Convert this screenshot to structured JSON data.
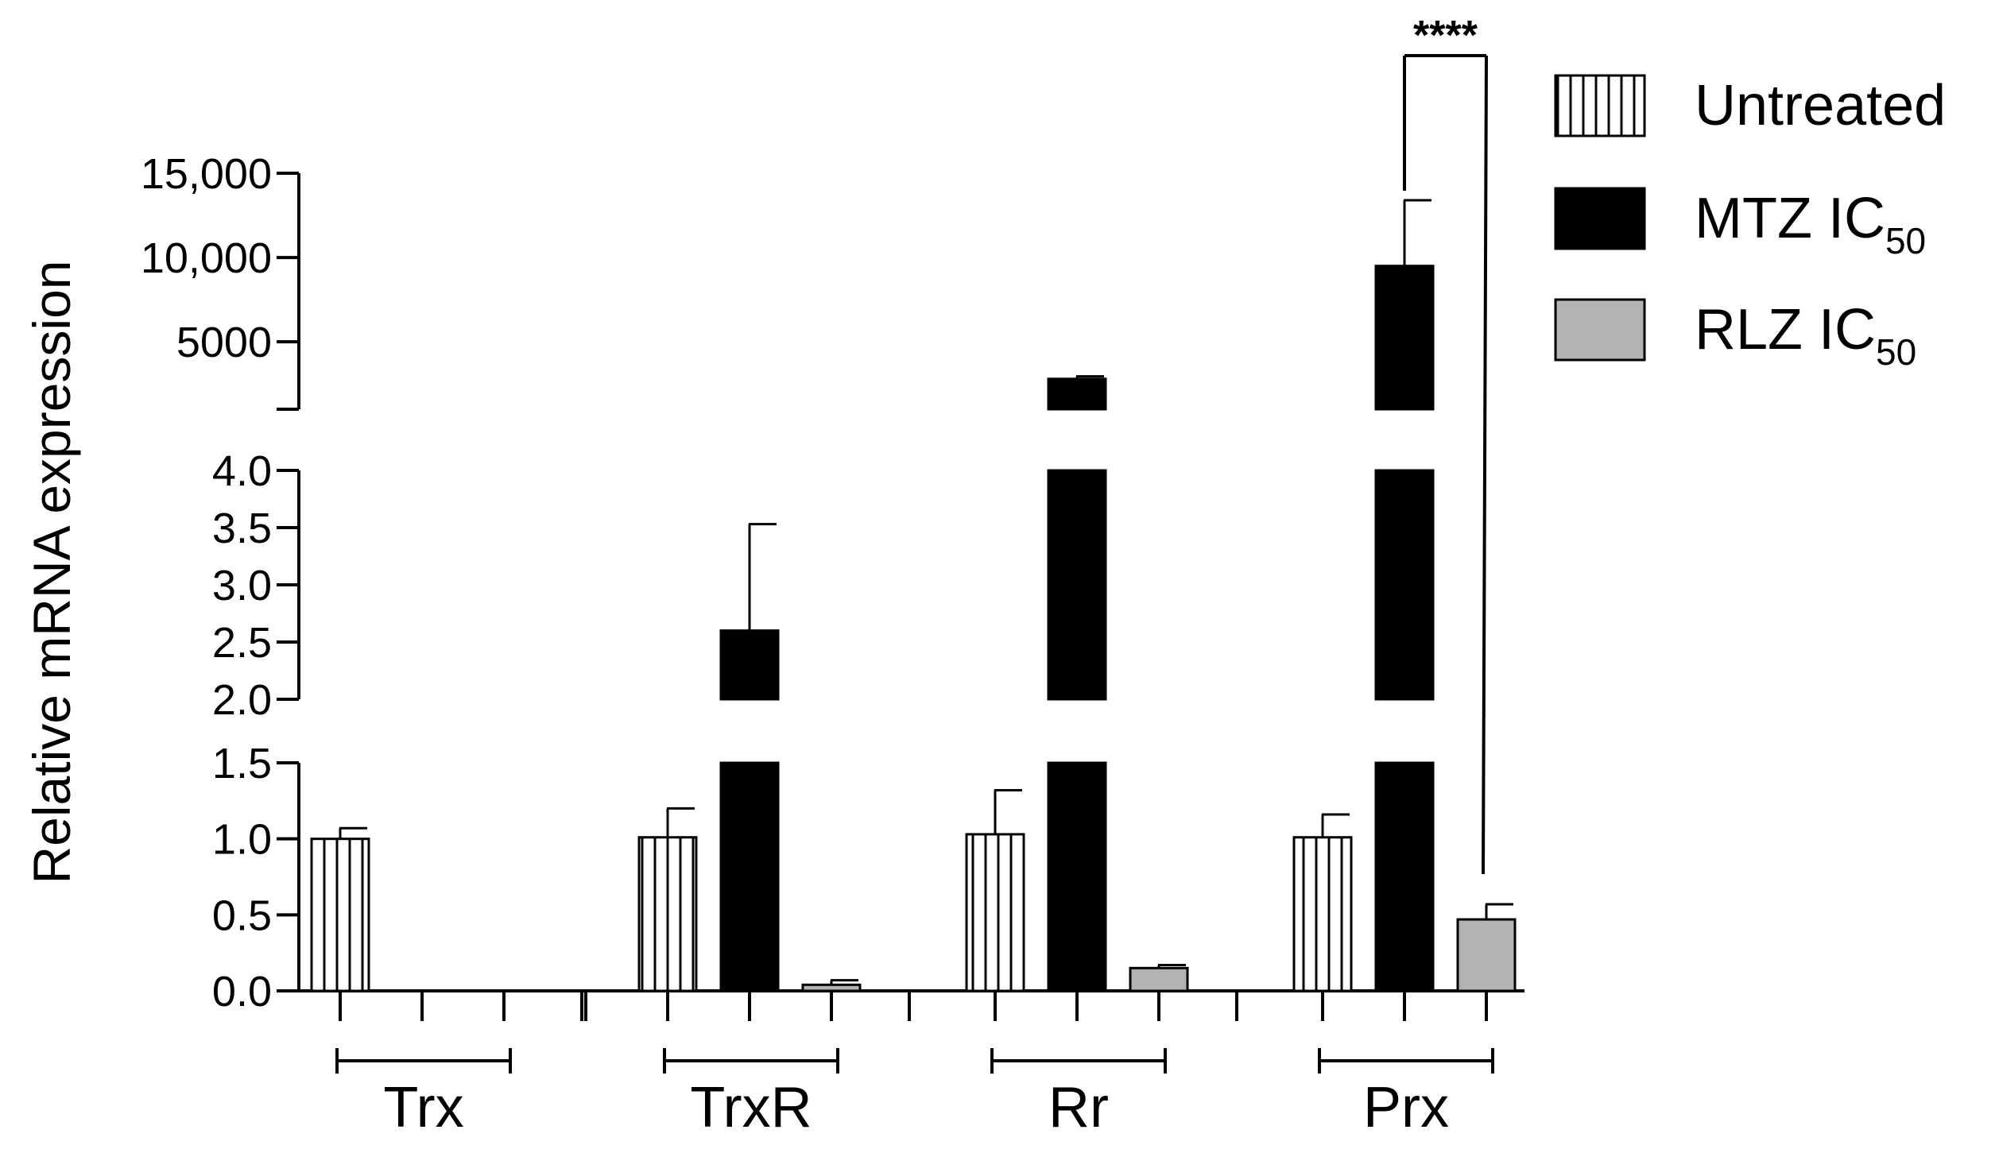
{
  "chart_data": {
    "type": "bar",
    "ylabel": "Relative mRNA expression",
    "xlabel": "",
    "title": "",
    "categories": [
      "Trx",
      "TrxR",
      "Rr",
      "Prx"
    ],
    "series": [
      {
        "name": "Untreated",
        "values": [
          1.0,
          1.01,
          1.03,
          1.01
        ],
        "errors": [
          0.07,
          0.19,
          0.29,
          0.15
        ],
        "fill": "#ffffff",
        "pattern": "vertical-stripes"
      },
      {
        "name": "MTZ IC",
        "name_sub": "50",
        "values": [
          0,
          2.6,
          2800,
          9500
        ],
        "errors": [
          0,
          0.93,
          150,
          3900
        ],
        "fill": "#000000"
      },
      {
        "name": "RLZ  IC",
        "name_sub": "50",
        "values": [
          0,
          0.04,
          0.15,
          0.47
        ],
        "errors": [
          0,
          0.03,
          0.02,
          0.1
        ],
        "fill": "#b3b3b5"
      }
    ],
    "y_axis_segments": [
      {
        "range": [
          0,
          1.5
        ],
        "ticks": [
          0.0,
          0.5,
          1.0,
          1.5
        ],
        "tick_labels": [
          "0.0",
          "0.5",
          "1.0",
          "1.5"
        ]
      },
      {
        "range": [
          2.0,
          4.0
        ],
        "ticks": [
          2.0,
          2.5,
          3.0,
          3.5,
          4.0
        ],
        "tick_labels": [
          "2.0",
          "2.5",
          "3.0",
          "3.5",
          "4.0"
        ]
      },
      {
        "range": [
          1000,
          15000
        ],
        "ticks": [
          5000,
          10000,
          15000
        ],
        "tick_labels": [
          "5000",
          "10,000",
          "15,000"
        ]
      }
    ],
    "annotations": [
      {
        "text": "****",
        "between": [
          "Prx:MTZ IC50",
          "Prx:RLZ  IC50"
        ]
      }
    ],
    "legend": {
      "position": "top-right"
    },
    "grid": false
  }
}
